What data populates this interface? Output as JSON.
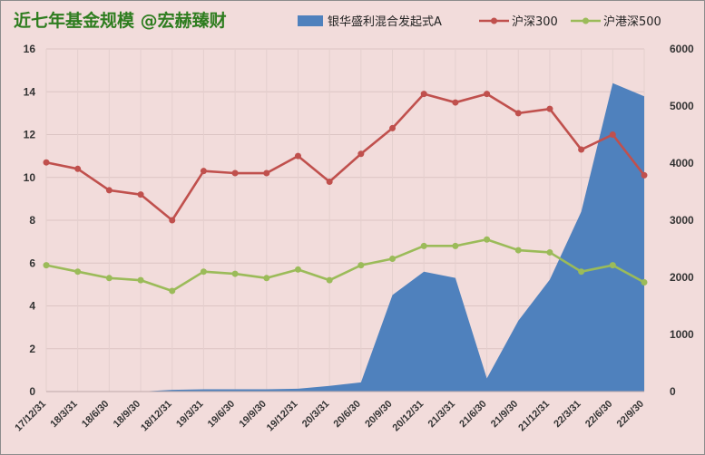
{
  "chart_data": {
    "type": "line",
    "title": "近七年基金规模 @宏赫臻财",
    "categories": [
      "17/12/31",
      "18/3/31",
      "18/6/30",
      "18/9/30",
      "18/12/31",
      "19/3/31",
      "19/6/30",
      "19/9/30",
      "19/12/31",
      "20/3/31",
      "20/6/30",
      "20/9/30",
      "20/12/31",
      "21/3/31",
      "21/6/30",
      "21/9/30",
      "21/12/31",
      "22/3/31",
      "22/6/30",
      "22/9/30"
    ],
    "left_axis": {
      "ylim": [
        0,
        16
      ],
      "ticks": [
        "0",
        "2",
        "4",
        "6",
        "8",
        "10",
        "12",
        "14",
        "16"
      ]
    },
    "right_axis": {
      "ylim": [
        0,
        6000
      ],
      "ticks": [
        "0",
        "1000",
        "2000",
        "3000",
        "4000",
        "5000",
        "6000"
      ]
    },
    "legend_position": "top",
    "grid": true,
    "series": [
      {
        "name": "银华盛利混合发起式A",
        "type": "area",
        "axis": "right",
        "color": "#4f81bd",
        "values": [
          0,
          0,
          0,
          0,
          30,
          40,
          40,
          40,
          50,
          100,
          160,
          1690,
          2100,
          1990,
          230,
          1240,
          1960,
          3150,
          5400,
          5170
        ]
      },
      {
        "name": "沪深300",
        "type": "line",
        "axis": "left",
        "color": "#c0504d",
        "values": [
          10.7,
          10.4,
          9.4,
          9.2,
          8.0,
          10.3,
          10.2,
          10.2,
          11.0,
          9.8,
          11.1,
          12.3,
          13.9,
          13.5,
          13.9,
          13.0,
          13.2,
          11.3,
          12.0,
          10.1
        ]
      },
      {
        "name": "沪港深500",
        "type": "line",
        "axis": "left",
        "color": "#9bbb59",
        "values": [
          5.9,
          5.6,
          5.3,
          5.2,
          4.7,
          5.6,
          5.5,
          5.3,
          5.7,
          5.2,
          5.9,
          6.2,
          6.8,
          6.8,
          7.1,
          6.6,
          6.5,
          5.6,
          5.9,
          5.1
        ]
      }
    ]
  }
}
